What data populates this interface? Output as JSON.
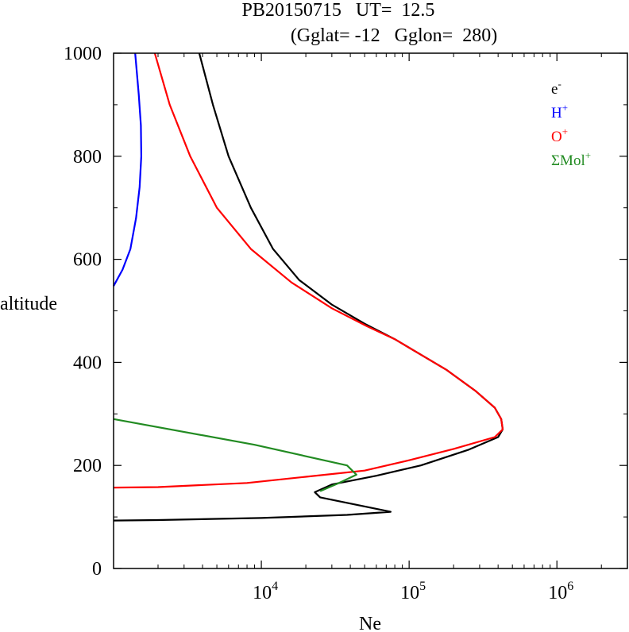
{
  "chart_data": {
    "type": "line",
    "title_line1": "PB20150715   UT=  12.5",
    "title_line2": "(Gglat= -12   Gglon=  280)",
    "xlabel": "Ne",
    "ylabel": "altitude",
    "xscale": "log",
    "xlim": [
      1000,
      3000000
    ],
    "ylim": [
      0,
      1000
    ],
    "y_ticks": [
      {
        "value": 0,
        "label": "0"
      },
      {
        "value": 200,
        "label": "200"
      },
      {
        "value": 400,
        "label": "400"
      },
      {
        "value": 600,
        "label": "600"
      },
      {
        "value": 800,
        "label": "800"
      },
      {
        "value": 1000,
        "label": "1000"
      }
    ],
    "x_ticks": [
      {
        "value": 10000,
        "base": "10",
        "exp": "4"
      },
      {
        "value": 100000,
        "base": "10",
        "exp": "5"
      },
      {
        "value": 1000000,
        "base": "10",
        "exp": "6"
      }
    ],
    "legend_placement": "top-right",
    "series": [
      {
        "name": "e",
        "sup": "-",
        "color": "#000000",
        "points": [
          [
            1000,
            93
          ],
          [
            2000,
            94
          ],
          [
            10000,
            98
          ],
          [
            38000,
            104
          ],
          [
            75000,
            110
          ],
          [
            25000,
            138
          ],
          [
            23000,
            148
          ],
          [
            30000,
            163
          ],
          [
            60000,
            180
          ],
          [
            120000,
            200
          ],
          [
            250000,
            230
          ],
          [
            400000,
            255
          ],
          [
            430000,
            270
          ],
          [
            420000,
            290
          ],
          [
            380000,
            312
          ],
          [
            280000,
            345
          ],
          [
            180000,
            385
          ],
          [
            120000,
            415
          ],
          [
            80000,
            445
          ],
          [
            50000,
            475
          ],
          [
            30000,
            512
          ],
          [
            18000,
            560
          ],
          [
            12000,
            620
          ],
          [
            8500,
            700
          ],
          [
            6000,
            800
          ],
          [
            4700,
            900
          ],
          [
            3800,
            1000
          ]
        ]
      },
      {
        "name": "H",
        "sup": "+",
        "color": "#0000ff",
        "points": [
          [
            1000,
            548
          ],
          [
            1150,
            580
          ],
          [
            1300,
            620
          ],
          [
            1420,
            680
          ],
          [
            1500,
            740
          ],
          [
            1540,
            800
          ],
          [
            1530,
            860
          ],
          [
            1480,
            920
          ],
          [
            1400,
            1000
          ]
        ]
      },
      {
        "name": "O",
        "sup": "+",
        "color": "#ff0000",
        "points": [
          [
            1000,
            157
          ],
          [
            2000,
            158
          ],
          [
            8000,
            166
          ],
          [
            20000,
            178
          ],
          [
            50000,
            190
          ],
          [
            100000,
            210
          ],
          [
            200000,
            232
          ],
          [
            380000,
            255
          ],
          [
            430000,
            270
          ],
          [
            420000,
            290
          ],
          [
            380000,
            312
          ],
          [
            280000,
            345
          ],
          [
            180000,
            385
          ],
          [
            120000,
            415
          ],
          [
            80000,
            445
          ],
          [
            52000,
            470
          ],
          [
            30000,
            505
          ],
          [
            16000,
            555
          ],
          [
            8500,
            620
          ],
          [
            5000,
            700
          ],
          [
            3300,
            800
          ],
          [
            2400,
            900
          ],
          [
            1900,
            1000
          ]
        ]
      },
      {
        "name": "ΣMol",
        "sup": "+",
        "color": "#228b22",
        "points": [
          [
            1000,
            290
          ],
          [
            9000,
            240
          ],
          [
            38000,
            200
          ],
          [
            44000,
            182
          ],
          [
            33000,
            165
          ],
          [
            25000,
            150
          ]
        ]
      }
    ]
  }
}
